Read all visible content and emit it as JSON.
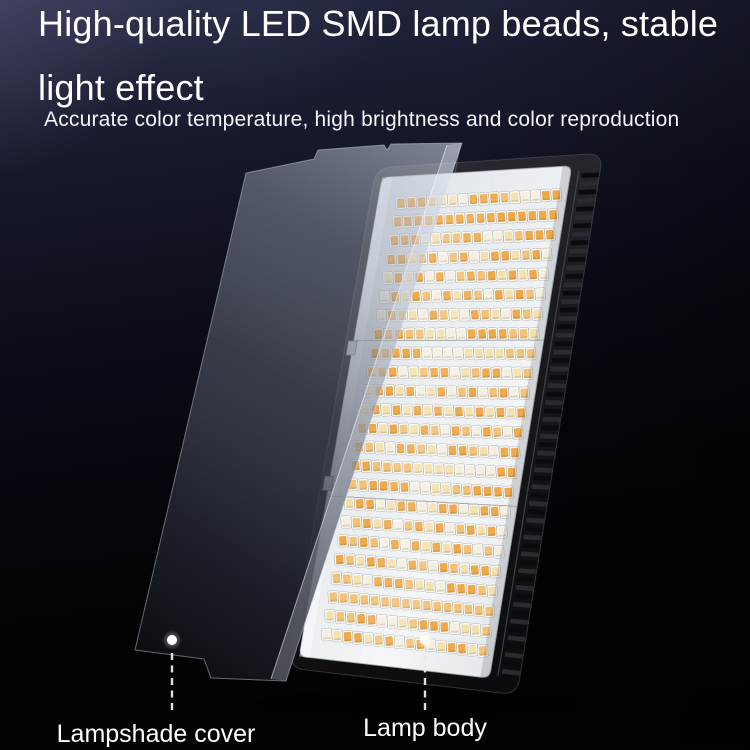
{
  "headline": {
    "line1": "High-quality LED SMD lamp beads, stable",
    "line2": "light effect"
  },
  "subheadline": "Accurate color temperature, high brightness and color reproduction",
  "callouts": {
    "lampshade_cover": {
      "label": "Lampshade cover"
    },
    "lamp_body": {
      "label": "Lamp body"
    }
  },
  "colors": {
    "headline_text": "#ffffff",
    "subheadline_text": "#f4f5f7",
    "label_text": "#ffffff",
    "callout_dot": "#ffffff",
    "callout_line": "#e9ebef",
    "background_top": "#252942",
    "background_bottom": "#020203",
    "background_glow": "#7d73a0",
    "lamp_frame_dark": "#131316",
    "lamp_frame_mid": "#1a1a1f",
    "lamp_frame_light": "#2a2a31",
    "lens_base": "#c6cdd5",
    "lens_light": "#f3f5f6",
    "led_cup": "#f8f9f7",
    "led_palette": [
      "#efa94a",
      "#f3c276",
      "#f4e2ae",
      "#f4efdf"
    ],
    "cover_light": "#d6deec",
    "cover_mid": "#545a68",
    "cover_dark": "#0d0f14"
  }
}
